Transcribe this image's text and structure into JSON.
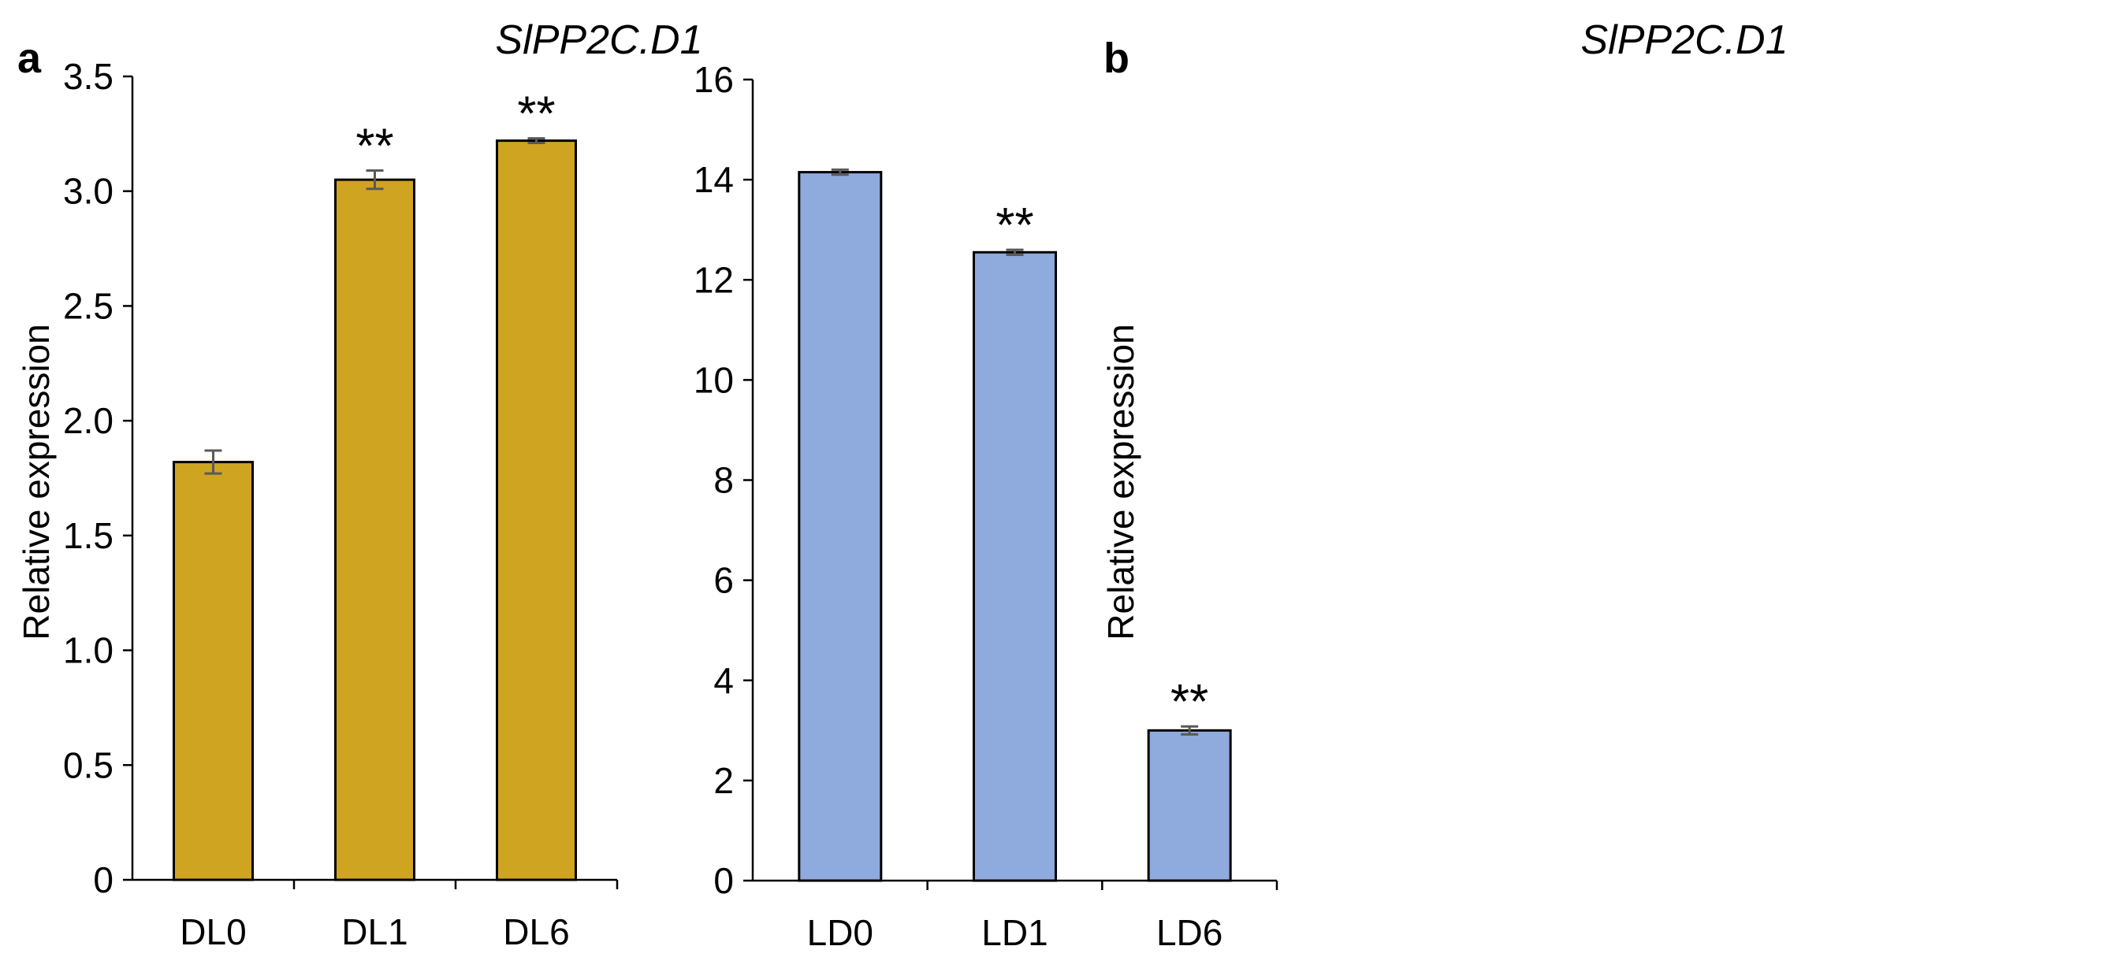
{
  "chart_data": [
    {
      "panel": "a",
      "type": "bar",
      "title": "SlPP2C.D1",
      "xlabel": "",
      "ylabel": "Relative expression",
      "categories": [
        "DL0",
        "DL1",
        "DL6"
      ],
      "values": [
        1.82,
        3.05,
        3.22
      ],
      "errors": [
        0.05,
        0.04,
        0.01
      ],
      "significance": [
        "",
        "**",
        "**"
      ],
      "ylim": [
        0,
        3.5
      ],
      "yticks": [
        "0",
        "0.5",
        "1.0",
        "1.5",
        "2.0",
        "2.5",
        "3.0",
        "3.5"
      ],
      "bar_color": "#CFA421",
      "grid": false
    },
    {
      "panel": "b",
      "type": "bar",
      "title": "SlPP2C.D1",
      "xlabel": "",
      "ylabel": "Relative expression",
      "categories": [
        "LD0",
        "LD1",
        "LD6"
      ],
      "values": [
        14.15,
        12.55,
        3.0
      ],
      "errors": [
        0.05,
        0.05,
        0.08
      ],
      "significance": [
        "",
        "**",
        "**"
      ],
      "ylim": [
        0,
        16
      ],
      "yticks": [
        "0",
        "2",
        "4",
        "6",
        "8",
        "10",
        "12",
        "14",
        "16"
      ],
      "bar_color": "#8FAADC",
      "grid": false
    }
  ]
}
